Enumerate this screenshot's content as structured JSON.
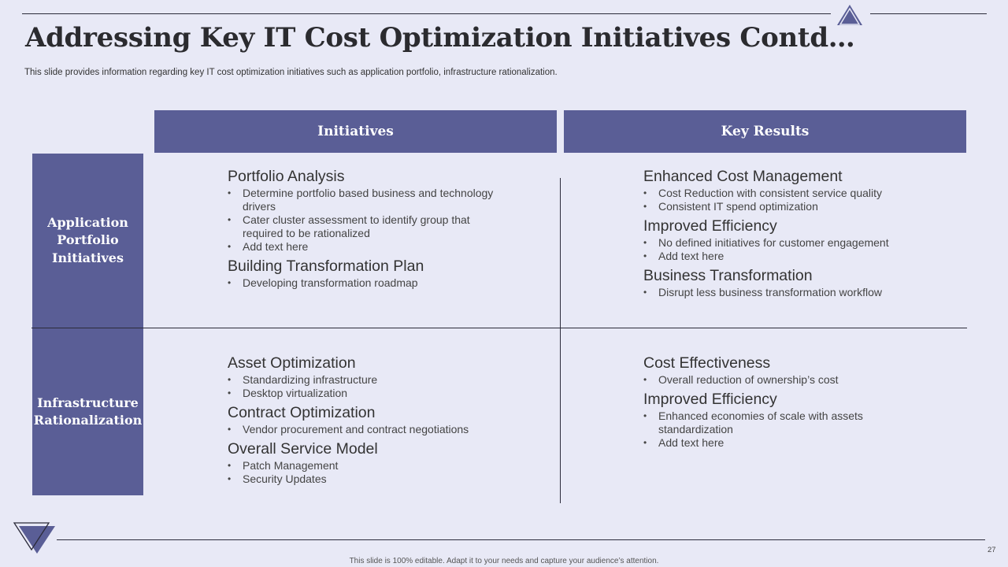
{
  "slide": {
    "title": "Addressing Key IT Cost Optimization Initiatives Contd…",
    "subtitle": "This slide provides information regarding key IT  cost optimization initiatives such as application portfolio, infrastructure rationalization.",
    "page_number": "27",
    "footer_note": "This slide is 100% editable. Adapt it to your needs and capture your audience’s attention."
  },
  "colors": {
    "header_fill": "#5a5e96",
    "background": "#e8e9f6"
  },
  "icons": {
    "top_logo": "triangle-logo-icon",
    "bottom_logo": "inverted-triangle-logo-icon"
  },
  "table": {
    "headers": [
      "Initiatives",
      "Key Results"
    ],
    "rows": [
      {
        "label": "Application Portfolio Initiatives",
        "initiatives": [
          {
            "title": "Portfolio Analysis",
            "bullets": [
              "Determine portfolio based business and technology drivers",
              "Cater cluster assessment to identify group that required to be rationalized",
              "Add text here"
            ]
          },
          {
            "title": "Building Transformation Plan",
            "bullets": [
              "Developing transformation roadmap"
            ]
          }
        ],
        "results": [
          {
            "title": "Enhanced Cost Management",
            "bullets": [
              "Cost Reduction with consistent service quality",
              "Consistent IT spend optimization"
            ]
          },
          {
            "title": "Improved Efficiency",
            "bullets": [
              "No defined initiatives for customer engagement",
              "Add text here"
            ]
          },
          {
            "title": "Business Transformation",
            "bullets": [
              "Disrupt less business transformation workflow"
            ]
          }
        ]
      },
      {
        "label": "Infrastructure Rationalization",
        "initiatives": [
          {
            "title": "Asset Optimization",
            "bullets": [
              "Standardizing infrastructure",
              "Desktop virtualization"
            ]
          },
          {
            "title": "Contract Optimization",
            "bullets": [
              "Vendor procurement and contract negotiations"
            ]
          },
          {
            "title": "Overall Service Model",
            "bullets": [
              "Patch Management",
              "Security Updates"
            ]
          }
        ],
        "results": [
          {
            "title": "Cost Effectiveness",
            "bullets": [
              "Overall reduction of ownership’s cost"
            ]
          },
          {
            "title": "Improved Efficiency",
            "bullets": [
              "Enhanced economies of scale with assets standardization",
              "Add text here"
            ]
          }
        ]
      }
    ]
  }
}
